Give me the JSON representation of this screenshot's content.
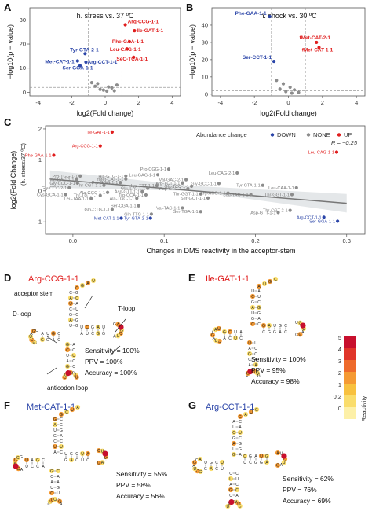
{
  "colors": {
    "down": "#2b45a8",
    "none": "#8c8c8c",
    "up": "#e01d1d",
    "ref": "#9a9a9a"
  },
  "chart_data": [
    {
      "type": "scatter",
      "panel": "A",
      "title": "h. stress vs. 37 ºC",
      "xlabel": "log2(Fold change)",
      "ylabel": "−log10(p − value)",
      "xlim": [
        -4.5,
        4.5
      ],
      "ylim": [
        -1.5,
        35
      ],
      "xticks": [
        -4,
        -2,
        0,
        2,
        4
      ],
      "yticks": [
        0,
        10,
        20,
        30
      ],
      "vlines": [
        -1,
        1
      ],
      "hline": 2,
      "points": [
        {
          "x": 1.2,
          "y": 28,
          "label": "Arg-CCG-1-1",
          "color": "up"
        },
        {
          "x": 1.75,
          "y": 25.5,
          "label": "Ile-GAT-1-1",
          "color": "up"
        },
        {
          "x": 1.45,
          "y": 21,
          "label": "Phe-GAA-1-1",
          "color": "up"
        },
        {
          "x": 1.3,
          "y": 18,
          "label": "Leu-CAG-1-1",
          "color": "up"
        },
        {
          "x": 1.7,
          "y": 14.5,
          "label": "SeC-TCA-1-1",
          "color": "up"
        },
        {
          "x": -1.2,
          "y": 16,
          "label": "Tyr-GTA-2-1",
          "color": "down"
        },
        {
          "x": -1.65,
          "y": 13,
          "label": "Met-CAT-1-1",
          "color": "down"
        },
        {
          "x": -1.15,
          "y": 12.5,
          "label": "Arg-CCT-1-1",
          "color": "down"
        },
        {
          "x": -1.5,
          "y": 11,
          "label": "Ser-GGA-1-1",
          "color": "down"
        },
        {
          "x": -0.6,
          "y": 2.5,
          "label": "",
          "color": "none"
        },
        {
          "x": -0.3,
          "y": 1.2,
          "label": "",
          "color": "none"
        },
        {
          "x": 0.1,
          "y": 0.5,
          "label": "",
          "color": "none"
        },
        {
          "x": 0.4,
          "y": 1.8,
          "label": "",
          "color": "none"
        },
        {
          "x": 0.7,
          "y": 3,
          "label": "",
          "color": "none"
        },
        {
          "x": -0.8,
          "y": 4,
          "label": "",
          "color": "none"
        },
        {
          "x": 0.2,
          "y": 2.2,
          "label": "",
          "color": "none"
        },
        {
          "x": -0.1,
          "y": 0.9,
          "label": "",
          "color": "none"
        },
        {
          "x": 0.55,
          "y": 0.6,
          "label": "",
          "color": "none"
        },
        {
          "x": -0.45,
          "y": 3.6,
          "label": "",
          "color": "none"
        }
      ]
    },
    {
      "type": "scatter",
      "panel": "B",
      "title": "h. shock vs. 30 ºC",
      "xlabel": "log2(Fold change)",
      "ylabel": "−log10(p − value)",
      "xlim": [
        -4.5,
        4.5
      ],
      "ylim": [
        -1,
        50
      ],
      "xticks": [
        -4,
        -2,
        0,
        2,
        4
      ],
      "yticks": [
        0,
        10,
        20,
        30,
        40
      ],
      "vlines": [
        -1,
        1
      ],
      "hline": 2,
      "points": [
        {
          "x": -1.1,
          "y": 45,
          "label": "Phe-GAA-1-1",
          "color": "down"
        },
        {
          "x": 1.65,
          "y": 30,
          "label": "fMet-CAT-2-1",
          "color": "up"
        },
        {
          "x": 1.8,
          "y": 27,
          "label": "fMet-CAT-1-1",
          "color": "up"
        },
        {
          "x": -0.85,
          "y": 19,
          "label": "Ser-CCT-1-1",
          "color": "down"
        },
        {
          "x": -0.3,
          "y": 6,
          "label": "",
          "color": "none"
        },
        {
          "x": 0.1,
          "y": 4,
          "label": "",
          "color": "none"
        },
        {
          "x": -0.5,
          "y": 3,
          "label": "",
          "color": "none"
        },
        {
          "x": 0.35,
          "y": 2.5,
          "label": "",
          "color": "none"
        },
        {
          "x": -0.15,
          "y": 1.5,
          "label": "",
          "color": "none"
        },
        {
          "x": 0.6,
          "y": 1,
          "label": "",
          "color": "none"
        },
        {
          "x": 0.2,
          "y": 0.6,
          "label": "",
          "color": "none"
        },
        {
          "x": -0.7,
          "y": 8,
          "label": "",
          "color": "none"
        }
      ]
    },
    {
      "type": "scatter",
      "panel": "C",
      "xlabel": "Changes in DMS reactivity in the acceptor-stem",
      "ylabel": "log2(Fold Change)",
      "ylabel2": "(h. stress/37 ºC)",
      "xlim": [
        -0.03,
        0.32
      ],
      "ylim": [
        -1.4,
        2.1
      ],
      "xticks": [
        0,
        0.1,
        0.2,
        0.3
      ],
      "xtick_labels": [
        "0.0",
        "0.1",
        "0.2",
        "0.3"
      ],
      "yticks": [
        -1,
        0,
        1,
        2
      ],
      "legend": {
        "title": "Abundance change",
        "items": [
          "DOWN",
          "NONE",
          "UP"
        ],
        "position": "top-right"
      },
      "r_label": "R = −0.25",
      "fit": {
        "x0": -0.025,
        "y0": 0.38,
        "x1": 0.3,
        "y1": -0.4
      },
      "points": [
        {
          "x": 0.043,
          "y": 1.9,
          "label": "Ile-GAT-1-1",
          "color": "up"
        },
        {
          "x": 0.03,
          "y": 1.45,
          "label": "Arg-CCG-1-1",
          "color": "up"
        },
        {
          "x": -0.021,
          "y": 1.15,
          "label": "Phe-GAA-1-1",
          "color": "up"
        },
        {
          "x": 0.289,
          "y": 1.25,
          "label": "Leu-CAG-1-1",
          "color": "up"
        },
        {
          "x": 0.105,
          "y": 0.7,
          "label": "Pro-CGG-1-1",
          "color": "none"
        },
        {
          "x": 0.18,
          "y": 0.58,
          "label": "Leu-CAG-2-1",
          "color": "none"
        },
        {
          "x": 0.008,
          "y": 0.48,
          "label": "Pro-TGG-1-1",
          "color": "none"
        },
        {
          "x": 0.058,
          "y": 0.48,
          "label": "His-GTG-1-1",
          "color": "none"
        },
        {
          "x": 0.093,
          "y": 0.52,
          "label": "Leu-GAG-1-1",
          "color": "none"
        },
        {
          "x": 0.004,
          "y": 0.36,
          "label": "Val-GAC-1-1",
          "color": "none"
        },
        {
          "x": 0.058,
          "y": 0.38,
          "label": "fMet-CAT-1-1",
          "color": "none"
        },
        {
          "x": 0.124,
          "y": 0.36,
          "label": "Val-GAC-2-1",
          "color": "none"
        },
        {
          "x": 0.005,
          "y": 0.25,
          "label": "Gly-CCC-1-1",
          "color": "none"
        },
        {
          "x": 0.052,
          "y": 0.27,
          "label": "Pro-GGG-1-1",
          "color": "none"
        },
        {
          "x": 0.12,
          "y": 0.25,
          "label": "Arg-TCT-1-1",
          "color": "none"
        },
        {
          "x": 0.16,
          "y": 0.24,
          "label": "Gly-GCC-1-1",
          "color": "none"
        },
        {
          "x": 0.034,
          "y": 0.18,
          "label": "Thr-CGT-1-1",
          "color": "none"
        },
        {
          "x": 0.092,
          "y": 0.17,
          "label": "Lys-TTT-1-1",
          "color": "none"
        },
        {
          "x": 0.13,
          "y": 0.15,
          "label": "Gly-TCC-1-1",
          "color": "none"
        },
        {
          "x": 0.208,
          "y": 0.18,
          "label": "Tyr-GTA-1-1",
          "color": "none"
        },
        {
          "x": -0.004,
          "y": 0.1,
          "label": "Gly-CCC-2-1",
          "color": "none"
        },
        {
          "x": 0.082,
          "y": 0.08,
          "label": "Glu-TTC-1-1",
          "color": "none"
        },
        {
          "x": 0.126,
          "y": 0.07,
          "label": "Asp-GTC-1-1",
          "color": "none"
        },
        {
          "x": 0.245,
          "y": 0.1,
          "label": "Leu-CAA-1-1",
          "color": "none"
        },
        {
          "x": 0.038,
          "y": -0.05,
          "label": "Ala-GGC-1-1",
          "color": "none"
        },
        {
          "x": 0.076,
          "y": -0.02,
          "label": "Asn-GTT-1-1",
          "color": "none"
        },
        {
          "x": -0.008,
          "y": -0.12,
          "label": "Cys-GCA-1-1",
          "color": "none"
        },
        {
          "x": 0.03,
          "y": -0.15,
          "label": "Thr-TGT-1-1",
          "color": "none"
        },
        {
          "x": 0.08,
          "y": -0.13,
          "label": "Trp-CCA-1-1",
          "color": "none"
        },
        {
          "x": 0.14,
          "y": -0.1,
          "label": "Thr-GGT-1-1",
          "color": "none"
        },
        {
          "x": 0.17,
          "y": -0.07,
          "label": "Arg-ACG-1-1",
          "color": "none"
        },
        {
          "x": 0.195,
          "y": -0.12,
          "label": "Leu-TAG-1-1",
          "color": "none"
        },
        {
          "x": 0.24,
          "y": -0.12,
          "label": "Thr-GGT-1-1",
          "color": "none"
        },
        {
          "x": 0.02,
          "y": -0.25,
          "label": "Leu-TAA-1-1",
          "color": "none"
        },
        {
          "x": 0.07,
          "y": -0.24,
          "label": "Ala-TGC-1-1",
          "color": "none"
        },
        {
          "x": 0.148,
          "y": -0.23,
          "label": "Ser-GCT-1-1",
          "color": "none"
        },
        {
          "x": 0.072,
          "y": -0.48,
          "label": "Ser-CGA-1-1",
          "color": "none"
        },
        {
          "x": 0.12,
          "y": -0.55,
          "label": "Val-TAC-1-1",
          "color": "none"
        },
        {
          "x": 0.043,
          "y": -0.6,
          "label": "Gln-CTG-1-1",
          "color": "none"
        },
        {
          "x": 0.14,
          "y": -0.67,
          "label": "Ser-TGA-1-1",
          "color": "none"
        },
        {
          "x": 0.238,
          "y": -0.63,
          "label": "Thr-CGT-2-1",
          "color": "none"
        },
        {
          "x": 0.086,
          "y": -0.75,
          "label": "Gln-TTG-1-1",
          "color": "none"
        },
        {
          "x": 0.225,
          "y": -0.7,
          "label": "Asp-GTT-1-1",
          "color": "none"
        },
        {
          "x": 0.085,
          "y": -0.88,
          "label": "Tyr-GTA-2-1",
          "color": "down"
        },
        {
          "x": 0.053,
          "y": -0.88,
          "label": "Met-CAT-1-1",
          "color": "down"
        },
        {
          "x": 0.275,
          "y": -0.85,
          "label": "Arg-CCT-1-1",
          "color": "down"
        },
        {
          "x": 0.29,
          "y": -0.98,
          "label": "Ser-GGA-1-1",
          "color": "down"
        }
      ]
    }
  ],
  "panels": {
    "A": "A",
    "B": "B",
    "C": "C",
    "D": "D",
    "E": "E",
    "F": "F",
    "G": "G"
  },
  "structures": {
    "D": {
      "name": "Arg-CCG-1-1",
      "name_color": "up",
      "sensitivity": "Sensitivity = 100%",
      "ppv": "PPV = 100%",
      "accuracy": "Accuracy = 100%",
      "annotations": [
        "acceptor stem",
        "D-loop",
        "T-loop",
        "anticodon loop"
      ]
    },
    "E": {
      "name": "Ile-GAT-1-1",
      "name_color": "up",
      "sensitivity": "Sensitivity = 100%",
      "ppv": "PPV = 95%",
      "accuracy": "Accuracy = 98%"
    },
    "F": {
      "name": "Met-CAT-1-1",
      "name_color": "down",
      "sensitivity": "Sensitivity = 55%",
      "ppv": "PPV = 58%",
      "accuracy": "Accuracy = 56%"
    },
    "G": {
      "name": "Arg-CCT-1-1",
      "name_color": "down",
      "sensitivity": "Sensitivity = 62%",
      "ppv": "PPV = 76%",
      "accuracy": "Accuracy = 69%"
    }
  },
  "colorbar": {
    "title": "Reactivity",
    "ticks": [
      "5",
      "4",
      "3",
      "2",
      "1",
      "0.2",
      "0"
    ],
    "colors": [
      "#c8102e",
      "#e0352a",
      "#ee6a2b",
      "#f59a33",
      "#f8c13f",
      "#fadd6c",
      "#fdf0a8"
    ]
  }
}
